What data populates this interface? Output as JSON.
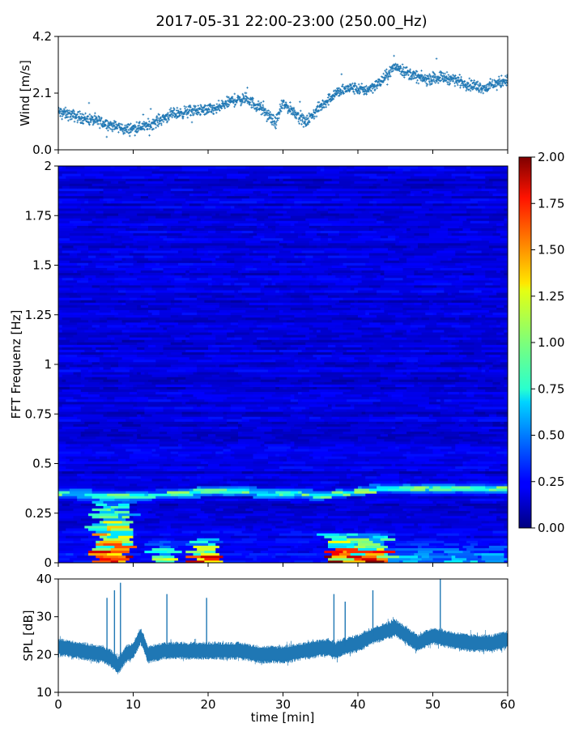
{
  "title": "2017-05-31 22:00-23:00 (250.00_Hz)",
  "colors": {
    "series": "#1f77b4",
    "axis": "#000000",
    "background": "#ffffff"
  },
  "chart_data": [
    {
      "type": "scatter",
      "name": "wind",
      "ylabel": "Wind [m/s]",
      "xlim": [
        0,
        60
      ],
      "ylim": [
        0.0,
        4.2
      ],
      "ytick_labels": [
        "0.0",
        "2.1",
        "4.2"
      ],
      "ytick_values": [
        0.0,
        2.1,
        4.2
      ],
      "xtick_values": [
        0,
        10,
        20,
        30,
        40,
        50,
        60
      ],
      "grid": false,
      "trend": {
        "x": [
          0,
          3,
          6,
          9,
          12,
          15,
          18,
          21,
          23,
          25,
          27,
          29,
          30,
          32,
          33,
          35,
          37,
          39,
          41,
          43,
          44,
          45,
          47,
          49,
          51,
          53,
          55,
          57,
          59,
          60
        ],
        "y": [
          1.4,
          1.2,
          1.0,
          0.75,
          0.9,
          1.3,
          1.45,
          1.5,
          1.8,
          1.9,
          1.55,
          1.0,
          1.7,
          1.3,
          1.0,
          1.6,
          2.1,
          2.3,
          2.2,
          2.5,
          2.8,
          3.1,
          2.8,
          2.6,
          2.7,
          2.6,
          2.4,
          2.3,
          2.5,
          2.6
        ]
      }
    },
    {
      "type": "heatmap",
      "name": "spectrogram",
      "ylabel": "FFT Frequenz [Hz]",
      "xlim": [
        0,
        60
      ],
      "ylim": [
        0,
        2
      ],
      "ytick_labels": [
        "0",
        "0.25",
        "0.5",
        "0.75",
        "1",
        "1.25",
        "1.5",
        "1.75",
        "2"
      ],
      "ytick_values": [
        0,
        0.25,
        0.5,
        0.75,
        1,
        1.25,
        1.5,
        1.75,
        2
      ],
      "colormap": "jet",
      "colorbar": {
        "range": [
          0.0,
          2.0
        ],
        "tick_labels": [
          "0.00",
          "0.25",
          "0.50",
          "0.75",
          "1.00",
          "1.25",
          "1.50",
          "1.75",
          "2.00"
        ],
        "tick_values": [
          0.0,
          0.25,
          0.5,
          0.75,
          1.0,
          1.25,
          1.5,
          1.75,
          2.0
        ]
      },
      "harmonic_line": {
        "x": [
          0,
          5,
          10,
          15,
          20,
          25,
          30,
          35,
          40,
          45,
          50,
          55,
          60
        ],
        "freq_hz": [
          0.35,
          0.34,
          0.33,
          0.35,
          0.36,
          0.36,
          0.35,
          0.34,
          0.36,
          0.38,
          0.38,
          0.37,
          0.37
        ]
      },
      "hot_regions": [
        {
          "x_start": 5.0,
          "x_end": 9.5,
          "freq_max": 0.35,
          "intensity": 1.5
        },
        {
          "x_start": 12.7,
          "x_end": 15.6,
          "freq_max": 0.12,
          "intensity": 1.0
        },
        {
          "x_start": 18.0,
          "x_end": 21.2,
          "freq_max": 0.12,
          "intensity": 1.6
        },
        {
          "x_start": 36.0,
          "x_end": 44.0,
          "freq_max": 0.15,
          "intensity": 1.7
        },
        {
          "x_start": 44.0,
          "x_end": 60.0,
          "freq_max": 0.12,
          "intensity": 0.6
        }
      ]
    },
    {
      "type": "line",
      "name": "spl",
      "ylabel": "SPL [dB]",
      "xlabel": "time [min]",
      "xlim": [
        0,
        60
      ],
      "ylim": [
        10,
        40
      ],
      "ytick_labels": [
        "10",
        "20",
        "30",
        "40"
      ],
      "ytick_values": [
        10,
        20,
        30,
        40
      ],
      "xtick_labels": [
        "0",
        "10",
        "20",
        "30",
        "40",
        "50",
        "60"
      ],
      "xtick_values": [
        0,
        10,
        20,
        30,
        40,
        50,
        60
      ],
      "grid": false,
      "trend": {
        "x": [
          0,
          3,
          6,
          7,
          8,
          9,
          10,
          11,
          12,
          14,
          17,
          20,
          24,
          27,
          30,
          33,
          36,
          37,
          38,
          40,
          42,
          45,
          48,
          50,
          52,
          55,
          58,
          60
        ],
        "y": [
          22,
          21,
          20,
          19,
          17,
          20,
          21,
          25,
          20,
          21,
          21,
          21,
          21,
          20,
          20,
          21,
          22,
          21,
          22,
          23,
          25,
          27,
          23,
          25,
          24,
          23,
          23,
          24
        ]
      },
      "spikes": [
        {
          "x": 6.5,
          "to": 35
        },
        {
          "x": 7.5,
          "to": 37
        },
        {
          "x": 8.3,
          "to": 39
        },
        {
          "x": 14.5,
          "to": 36
        },
        {
          "x": 19.8,
          "to": 35
        },
        {
          "x": 36.8,
          "to": 36
        },
        {
          "x": 38.3,
          "to": 34
        },
        {
          "x": 42.0,
          "to": 37
        },
        {
          "x": 51.0,
          "to": 40
        }
      ]
    }
  ]
}
